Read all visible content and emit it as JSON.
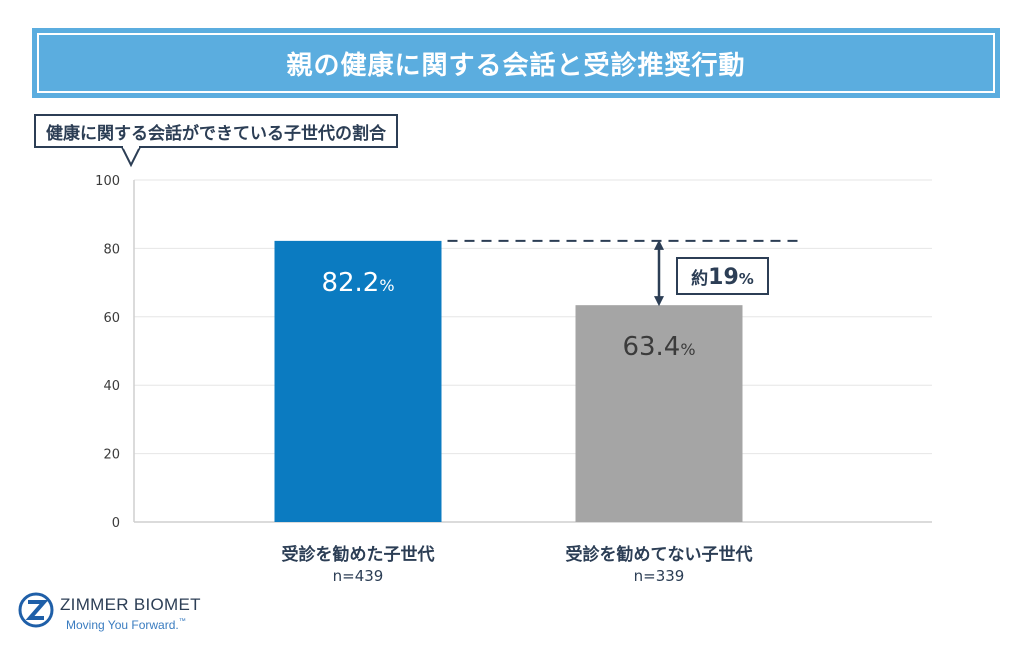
{
  "title": "親の健康に関する会話と受診推奨行動",
  "subtitle": "健康に関する会話ができている子世代の割合",
  "chart_data": {
    "type": "bar",
    "categories": [
      "受診を勧めた子世代",
      "受診を勧めてない子世代"
    ],
    "sample_sizes": [
      "n=439",
      "n=339"
    ],
    "values": [
      82.2,
      63.4
    ],
    "value_labels": [
      "82.2",
      "63.4"
    ],
    "value_unit": "%",
    "bar_colors": [
      "#0b7bc1",
      "#a5a5a5"
    ],
    "value_label_colors": [
      "#ffffff",
      "#3b3b3b"
    ],
    "ylim": [
      0,
      100
    ],
    "yticks": [
      0,
      20,
      40,
      60,
      80,
      100
    ],
    "grid": true,
    "annotation": {
      "prefix": "約",
      "value": "19",
      "unit": "%"
    }
  },
  "logo": {
    "name": "ZIMMER BIOMET",
    "tagline": "Moving You Forward.",
    "trademark": "™"
  },
  "colors": {
    "title_bg": "#5baddf",
    "dark": "#2c3e55",
    "grid": "#e6e6e6",
    "axis": "#cfcfcf"
  }
}
